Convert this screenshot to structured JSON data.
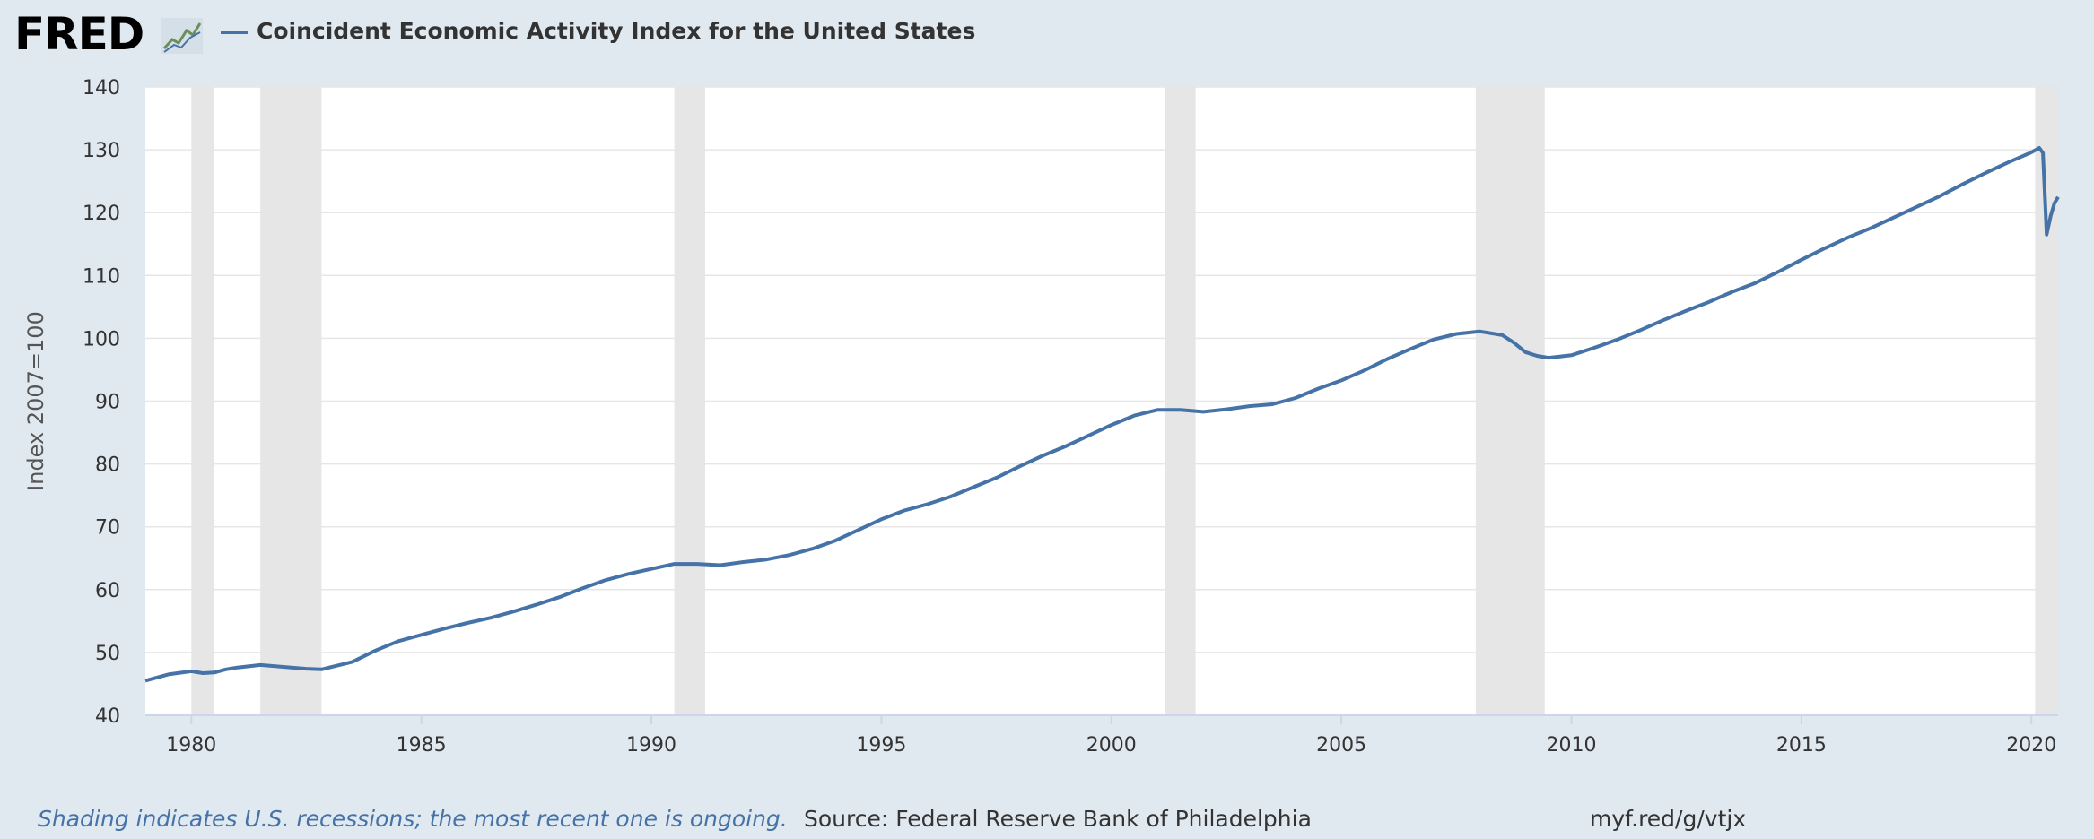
{
  "header": {
    "logo_text": "FRED",
    "legend_label": "Coincident Economic Activity Index for the United States"
  },
  "footer": {
    "note": "Shading indicates U.S. recessions; the most recent one is ongoing.",
    "source": "Source: Federal Reserve Bank of Philadelphia",
    "link": "myf.red/g/vtjx"
  },
  "colors": {
    "line": "#4572a7",
    "recession": "#e6e6e6",
    "background": "#e1e9f0",
    "plot": "#ffffff",
    "grid": "#e6e6e6"
  },
  "chart_data": {
    "type": "line",
    "title": "",
    "xlabel": "",
    "ylabel": "Index 2007=100",
    "xlim": [
      1979.0,
      2020.58
    ],
    "ylim": [
      40,
      140
    ],
    "yticks": [
      40,
      50,
      60,
      70,
      80,
      90,
      100,
      110,
      120,
      130,
      140
    ],
    "xticks": [
      1980,
      1985,
      1990,
      1995,
      2000,
      2005,
      2010,
      2015,
      2020
    ],
    "grid": true,
    "recessions": [
      [
        1980.0,
        1980.5
      ],
      [
        1981.5,
        1982.83
      ],
      [
        1990.5,
        1991.17
      ],
      [
        2001.17,
        2001.83
      ],
      [
        2007.92,
        2009.42
      ],
      [
        2020.08,
        2020.58
      ]
    ],
    "series": [
      {
        "name": "Coincident Economic Activity Index for the United States",
        "x": [
          1979.0,
          1979.5,
          1980.0,
          1980.25,
          1980.5,
          1980.75,
          1981.0,
          1981.5,
          1982.0,
          1982.5,
          1982.83,
          1983.0,
          1983.5,
          1984.0,
          1984.5,
          1985.0,
          1985.5,
          1986.0,
          1986.5,
          1987.0,
          1987.5,
          1988.0,
          1988.5,
          1989.0,
          1989.5,
          1990.0,
          1990.5,
          1991.0,
          1991.5,
          1992.0,
          1992.5,
          1993.0,
          1993.5,
          1994.0,
          1994.5,
          1995.0,
          1995.5,
          1996.0,
          1996.5,
          1997.0,
          1997.5,
          1998.0,
          1998.5,
          1999.0,
          1999.5,
          2000.0,
          2000.5,
          2001.0,
          2001.5,
          2002.0,
          2002.5,
          2003.0,
          2003.5,
          2004.0,
          2004.5,
          2005.0,
          2005.5,
          2006.0,
          2006.5,
          2007.0,
          2007.5,
          2008.0,
          2008.5,
          2008.75,
          2009.0,
          2009.25,
          2009.5,
          2009.75,
          2010.0,
          2010.5,
          2011.0,
          2011.5,
          2012.0,
          2012.5,
          2013.0,
          2013.5,
          2014.0,
          2014.5,
          2015.0,
          2015.5,
          2016.0,
          2016.5,
          2017.0,
          2017.5,
          2018.0,
          2018.5,
          2019.0,
          2019.5,
          2020.0,
          2020.17,
          2020.25,
          2020.33,
          2020.42,
          2020.5,
          2020.58
        ],
        "values": [
          45.5,
          46.5,
          47.0,
          46.7,
          46.8,
          47.3,
          47.6,
          48.0,
          47.7,
          47.4,
          47.3,
          47.6,
          48.5,
          50.3,
          51.8,
          52.8,
          53.8,
          54.7,
          55.5,
          56.5,
          57.6,
          58.8,
          60.2,
          61.5,
          62.5,
          63.3,
          64.1,
          64.1,
          63.9,
          64.4,
          64.8,
          65.5,
          66.5,
          67.8,
          69.5,
          71.2,
          72.6,
          73.6,
          74.8,
          76.3,
          77.8,
          79.6,
          81.3,
          82.8,
          84.5,
          86.2,
          87.7,
          88.6,
          88.6,
          88.3,
          88.7,
          89.2,
          89.5,
          90.5,
          92.0,
          93.3,
          94.9,
          96.7,
          98.3,
          99.8,
          100.7,
          101.1,
          100.5,
          99.3,
          97.8,
          97.2,
          96.9,
          97.1,
          97.3,
          98.5,
          99.8,
          101.3,
          102.9,
          104.4,
          105.8,
          107.4,
          108.8,
          110.6,
          112.5,
          114.3,
          116.0,
          117.5,
          119.2,
          120.9,
          122.6,
          124.5,
          126.3,
          128.0,
          129.6,
          130.3,
          129.5,
          116.5,
          119.5,
          121.5,
          122.5
        ]
      }
    ]
  }
}
